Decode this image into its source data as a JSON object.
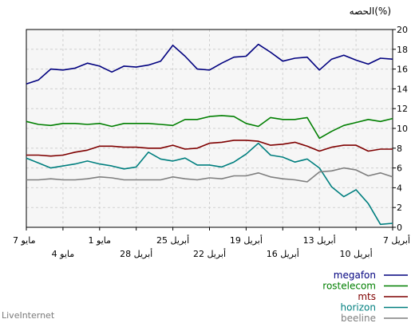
{
  "chart_data": {
    "type": "line",
    "ylabel": "الحصه(%)",
    "ylim": [
      0,
      20
    ],
    "yticks": [
      0,
      2,
      4,
      6,
      8,
      10,
      12,
      14,
      16,
      18,
      20
    ],
    "grid": true,
    "legend_position": "bottom-right",
    "x_tick_labels": [
      {
        "label": "7 أبريل",
        "index": 0,
        "row": 1
      },
      {
        "label": "10 أبريل",
        "index": 3,
        "row": 2
      },
      {
        "label": "13 أبريل",
        "index": 6,
        "row": 1
      },
      {
        "label": "16 أبريل",
        "index": 9,
        "row": 2
      },
      {
        "label": "19 أبريل",
        "index": 12,
        "row": 1
      },
      {
        "label": "22 أبريل",
        "index": 15,
        "row": 2
      },
      {
        "label": "25 أبريل",
        "index": 18,
        "row": 1
      },
      {
        "label": "28 أبريل",
        "index": 21,
        "row": 2
      },
      {
        "label": "1 مايو",
        "index": 24,
        "row": 1
      },
      {
        "label": "4 مايو",
        "index": 27,
        "row": 2
      },
      {
        "label": "7 مايو",
        "index": 30,
        "row": 1
      }
    ],
    "series": [
      {
        "name": "megafon",
        "color": "#00007f",
        "values": [
          17.0,
          17.1,
          16.5,
          16.9,
          17.4,
          17.0,
          15.9,
          17.2,
          17.1,
          16.8,
          17.7,
          18.5,
          17.3,
          17.2,
          16.6,
          15.9,
          16.0,
          17.3,
          18.4,
          16.8,
          16.4,
          16.2,
          16.3,
          15.7,
          16.3,
          16.6,
          16.1,
          15.9,
          16.0,
          14.9,
          14.5
        ]
      },
      {
        "name": "rostelecom",
        "color": "#007f00",
        "values": [
          11.0,
          10.7,
          10.9,
          10.6,
          10.3,
          9.7,
          9.0,
          11.1,
          10.9,
          10.9,
          11.1,
          10.2,
          10.5,
          11.2,
          11.3,
          11.2,
          10.9,
          10.9,
          10.3,
          10.4,
          10.5,
          10.5,
          10.5,
          10.2,
          10.5,
          10.4,
          10.5,
          10.5,
          10.3,
          10.4,
          10.7
        ]
      },
      {
        "name": "mts",
        "color": "#7f0000",
        "values": [
          7.9,
          7.9,
          7.7,
          8.3,
          8.3,
          8.1,
          7.7,
          8.2,
          8.6,
          8.4,
          8.3,
          8.7,
          8.8,
          8.8,
          8.6,
          8.5,
          8.0,
          7.9,
          8.3,
          8.0,
          8.0,
          8.1,
          8.1,
          8.2,
          8.2,
          7.8,
          7.6,
          7.3,
          7.2,
          7.3,
          7.3
        ]
      },
      {
        "name": "horizon",
        "color": "#007f7f",
        "values": [
          0.4,
          0.3,
          2.4,
          3.8,
          3.1,
          4.1,
          6.0,
          6.9,
          6.6,
          7.1,
          7.3,
          8.5,
          7.4,
          6.6,
          6.1,
          6.3,
          6.3,
          7.0,
          6.7,
          6.9,
          7.6,
          6.1,
          5.9,
          6.2,
          6.4,
          6.7,
          6.4,
          6.2,
          6.0,
          6.5,
          7.0
        ]
      },
      {
        "name": "beeline",
        "color": "#7f7f7f",
        "values": [
          5.1,
          5.5,
          5.2,
          5.8,
          6.0,
          5.7,
          5.6,
          4.6,
          4.8,
          4.9,
          5.1,
          5.5,
          5.2,
          5.2,
          4.9,
          5.0,
          4.8,
          4.9,
          5.1,
          4.8,
          4.8,
          4.8,
          4.8,
          5.0,
          5.1,
          4.9,
          4.8,
          4.8,
          4.9,
          4.8,
          4.8
        ]
      }
    ]
  },
  "watermark": "LiveInternet"
}
